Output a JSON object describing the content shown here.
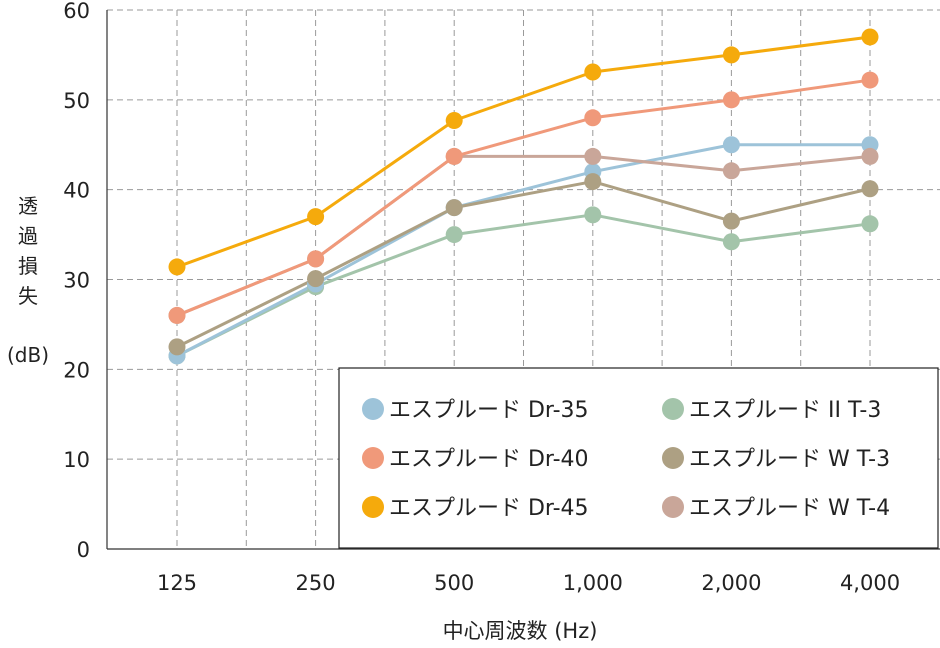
{
  "chart_data": {
    "type": "line",
    "title": "",
    "xlabel": "中心周波数 (Hz)",
    "ylabel": [
      "透",
      "過",
      "損",
      "失",
      "(dB)"
    ],
    "categories": [
      "125",
      "250",
      "500",
      "1,000",
      "2,000",
      "4,000"
    ],
    "ylim": [
      0,
      60
    ],
    "yticks": [
      0,
      10,
      20,
      30,
      40,
      50,
      60
    ],
    "grid": "dashed",
    "legend_position": "bottom-right",
    "series": [
      {
        "name": "エスプルード Dr-35",
        "color": "#9dc3d9",
        "values": [
          21.5,
          29.5,
          38.0,
          42.0,
          45.0,
          45.0
        ]
      },
      {
        "name": "エスプルード II T-3",
        "color": "#a3c4aa",
        "values": [
          21.5,
          29.2,
          35.0,
          37.2,
          34.2,
          36.2
        ]
      },
      {
        "name": "エスプルード Dr-40",
        "color": "#f0997a",
        "values": [
          26.0,
          32.3,
          43.7,
          48.0,
          50.0,
          52.2
        ]
      },
      {
        "name": "エスプルード W T-3",
        "color": "#ada083",
        "values": [
          22.5,
          30.1,
          38.0,
          40.9,
          36.5,
          40.1
        ]
      },
      {
        "name": "エスプルード Dr-45",
        "color": "#f5aa0c",
        "values": [
          31.4,
          37.0,
          47.7,
          53.1,
          55.0,
          57.0
        ]
      },
      {
        "name": "エスプルード W T-4",
        "color": "#c9a699",
        "values": [
          26.0,
          32.3,
          43.7,
          43.7,
          42.1,
          43.7
        ]
      }
    ]
  }
}
